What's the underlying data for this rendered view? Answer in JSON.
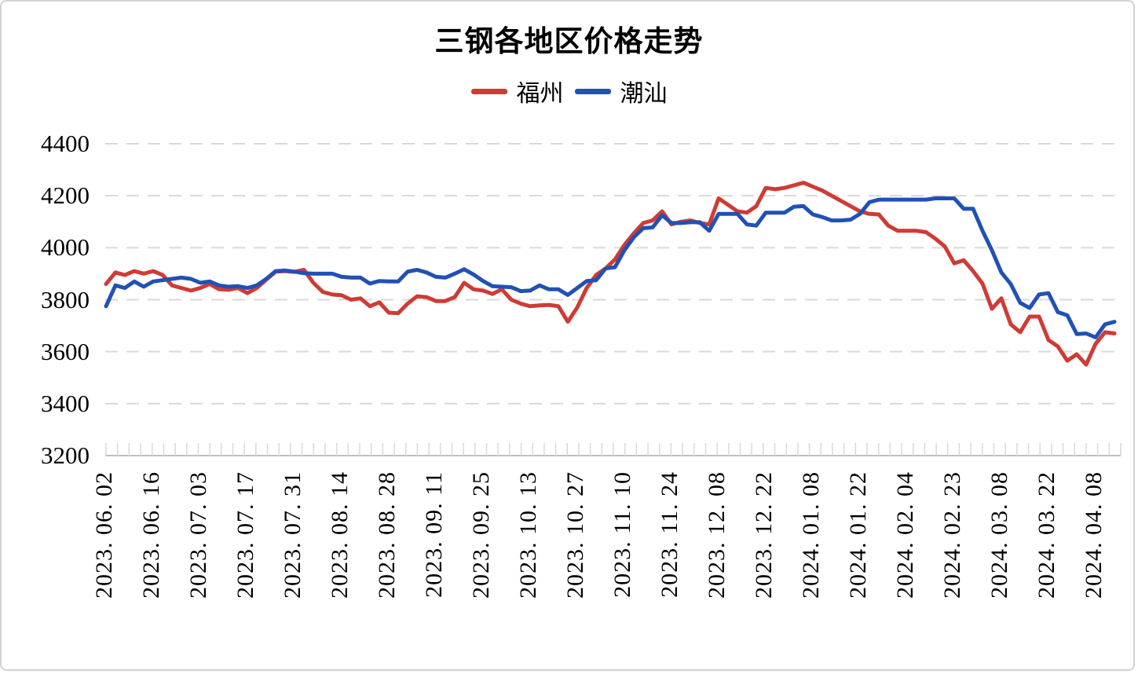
{
  "chart_data": {
    "type": "line",
    "title": "三钢各地区价格走势",
    "xlabel": "",
    "ylabel": "",
    "ylim": [
      3200,
      4400
    ],
    "ytick_step": 200,
    "yticks": [
      4400,
      4200,
      4000,
      3800,
      3600,
      3400,
      3200
    ],
    "grid": "horizontal-dashed",
    "legend_position": "top-center",
    "grid_color": "#d9d9d9",
    "axis_color": "#bfbfbf",
    "categories": [
      "2023. 06. 02",
      "2023. 06. 16",
      "2023. 07. 03",
      "2023. 07. 17",
      "2023. 07. 31",
      "2023. 08. 14",
      "2023. 08. 28",
      "2023. 09. 11",
      "2023. 09. 25",
      "2023. 10. 13",
      "2023. 10. 27",
      "2023. 11. 10",
      "2023. 11. 24",
      "2023. 12. 08",
      "2023. 12. 22",
      "2024. 01. 08",
      "2024. 01. 22",
      "2024. 02. 04",
      "2024. 02. 23",
      "2024. 03. 08",
      "2024. 03. 22",
      "2024. 04. 08"
    ],
    "points_per_category": 5,
    "series": [
      {
        "name": "福州",
        "color": "#CF3B35",
        "values": [
          3860,
          3905,
          3895,
          3910,
          3900,
          3910,
          3895,
          3855,
          3845,
          3835,
          3845,
          3860,
          3840,
          3838,
          3845,
          3825,
          3845,
          3877,
          3908,
          3910,
          3907,
          3915,
          3865,
          3830,
          3820,
          3817,
          3800,
          3805,
          3775,
          3790,
          3750,
          3748,
          3785,
          3813,
          3810,
          3795,
          3795,
          3810,
          3865,
          3840,
          3835,
          3822,
          3840,
          3800,
          3785,
          3775,
          3778,
          3780,
          3775,
          3715,
          3770,
          3845,
          3895,
          3920,
          3955,
          4010,
          4055,
          4095,
          4105,
          4140,
          4090,
          4100,
          4105,
          4095,
          4090,
          4190,
          4165,
          4140,
          4135,
          4160,
          4230,
          4225,
          4230,
          4240,
          4250,
          4235,
          4220,
          4200,
          4180,
          4160,
          4140,
          4130,
          4128,
          4085,
          4065,
          4065,
          4065,
          4060,
          4035,
          4005,
          3940,
          3952,
          3910,
          3862,
          3765,
          3805,
          3705,
          3675,
          3735,
          3735,
          3645,
          3620,
          3565,
          3590,
          3550,
          3630,
          3675,
          3670
        ]
      },
      {
        "name": "潮汕",
        "color": "#2151B5",
        "values": [
          3775,
          3855,
          3845,
          3870,
          3850,
          3870,
          3875,
          3880,
          3885,
          3880,
          3865,
          3870,
          3855,
          3850,
          3852,
          3845,
          3855,
          3880,
          3910,
          3912,
          3908,
          3902,
          3900,
          3900,
          3900,
          3888,
          3885,
          3885,
          3862,
          3872,
          3870,
          3870,
          3908,
          3915,
          3905,
          3888,
          3885,
          3900,
          3917,
          3897,
          3872,
          3852,
          3850,
          3848,
          3833,
          3835,
          3855,
          3840,
          3840,
          3818,
          3845,
          3872,
          3875,
          3920,
          3925,
          3990,
          4040,
          4075,
          4078,
          4125,
          4095,
          4095,
          4098,
          4098,
          4065,
          4130,
          4130,
          4130,
          4090,
          4085,
          4135,
          4135,
          4135,
          4158,
          4160,
          4128,
          4118,
          4105,
          4105,
          4108,
          4130,
          4175,
          4185,
          4185,
          4185,
          4185,
          4185,
          4185,
          4190,
          4190,
          4190,
          4150,
          4150,
          4065,
          3990,
          3905,
          3860,
          3788,
          3768,
          3820,
          3825,
          3752,
          3740,
          3668,
          3670,
          3655,
          3705,
          3715
        ]
      }
    ]
  }
}
